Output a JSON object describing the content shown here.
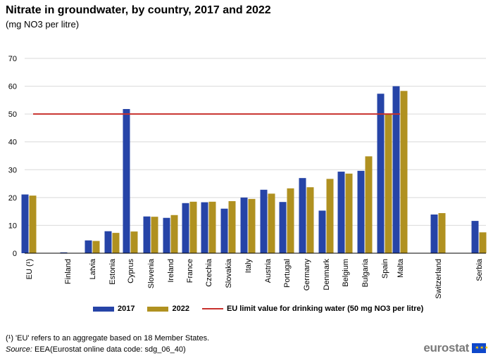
{
  "header": {
    "title": "Nitrate in groundwater, by country, 2017 and 2022",
    "subtitle": "(mg NO3 per litre)"
  },
  "chart_data": {
    "type": "bar",
    "ylim": [
      0,
      70
    ],
    "yticks": [
      0,
      10,
      20,
      30,
      40,
      50,
      60,
      70
    ],
    "grid": true,
    "legend_position": "bottom",
    "categories": [
      "EU (¹)",
      "Finland",
      "Latvia",
      "Estonia",
      "Cyprus",
      "Slovenia",
      "Ireland",
      "France",
      "Czechia",
      "Slovakia",
      "Italy",
      "Austria",
      "Portugal",
      "Germany",
      "Denmark",
      "Belgium",
      "Bulgaria",
      "Spain",
      "Malta",
      "Switzerland",
      "Serbia"
    ],
    "series": [
      {
        "name": "2017",
        "color": "#2644a7",
        "values": [
          21.1,
          0.3,
          4.6,
          7.9,
          51.8,
          13.2,
          12.7,
          18.0,
          18.3,
          16.0,
          20.0,
          22.8,
          18.4,
          27.0,
          15.3,
          29.3,
          29.6,
          57.3,
          60.0,
          13.9,
          11.6
        ]
      },
      {
        "name": "2022",
        "color": "#b09120",
        "values": [
          20.7,
          null,
          4.4,
          7.3,
          7.8,
          13.1,
          13.7,
          18.5,
          18.5,
          18.7,
          19.5,
          21.4,
          23.3,
          23.7,
          26.7,
          28.6,
          34.8,
          50.0,
          58.3,
          14.4,
          7.5
        ]
      }
    ],
    "reference_line": {
      "name": "EU limit value for drinking water (50 mg NO3 per litre)",
      "value": 50,
      "color": "#c8312d"
    }
  },
  "footer": {
    "footnote": "(¹) 'EU' refers to an aggregate based on 18 Member States.",
    "source_label": "Source:",
    "source_text": " EEA(Eurostat online data code: sdg_06_40)",
    "logo": "eurostat"
  }
}
